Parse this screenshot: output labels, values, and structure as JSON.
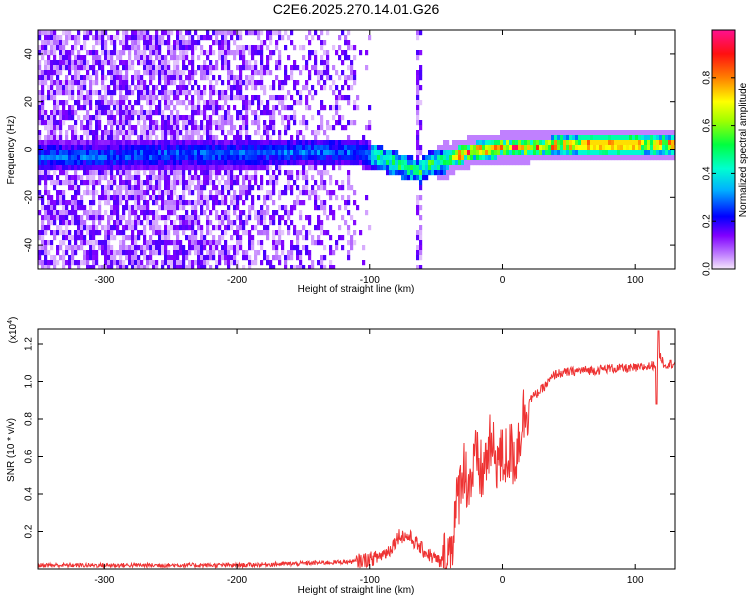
{
  "title": "C2E6.2025.270.14.01.G26",
  "chart_data": [
    {
      "type": "heatmap",
      "xlabel": "Height of straight line (km)",
      "ylabel": "Frequency (Hz)",
      "xlim": [
        -350,
        130
      ],
      "ylim": [
        -50,
        50
      ],
      "xticks": [
        -300,
        -200,
        -100,
        0,
        100
      ],
      "xtick_labels": [
        "-300",
        "-200",
        "-100",
        "0",
        "100"
      ],
      "yticks": [
        -40,
        -20,
        0,
        20,
        40
      ],
      "ytick_labels": [
        "-40",
        "-20",
        "0",
        "20",
        "40"
      ],
      "colorbar": {
        "label": "Normalized spectral amplitude",
        "range": [
          0,
          1
        ],
        "ticks": [
          0.0,
          0.2,
          0.4,
          0.6,
          0.8
        ],
        "tick_labels": [
          "0.0",
          "0.2",
          "0.4",
          "0.6",
          "0.8"
        ],
        "colors": [
          "#f0d8f8",
          "#8000ff",
          "#0000ff",
          "#00d8ff",
          "#00ff40",
          "#ffff00",
          "#ff8000",
          "#ff0000",
          "#ff0080"
        ]
      },
      "center_line": {
        "x": [
          -340,
          -300,
          -250,
          -200,
          -150,
          -110,
          -95,
          -80,
          -70,
          -62,
          -55,
          -45,
          -35,
          -25,
          -15,
          -5,
          0,
          20,
          50,
          80,
          100,
          130
        ],
        "y": [
          -3,
          -3,
          -2,
          -2,
          -1,
          -1,
          -3,
          -6,
          -8,
          -9,
          -6,
          -5,
          -3,
          -1,
          0,
          0,
          1,
          1,
          2,
          2,
          2,
          2
        ]
      }
    },
    {
      "type": "line",
      "xlabel": "Height of straight line (km)",
      "ylabel": "SNR (10 * v/v)",
      "y_multiplier": "(x10",
      "y_multiplier_exp": "4",
      "y_multiplier_close": ")",
      "xlim": [
        -350,
        130
      ],
      "ylim": [
        0,
        1.28
      ],
      "xticks": [
        -300,
        -200,
        -100,
        0,
        100
      ],
      "xtick_labels": [
        "-300",
        "-200",
        "-100",
        "0",
        "100"
      ],
      "yticks": [
        0.2,
        0.4,
        0.6,
        0.8,
        1.0,
        1.2
      ],
      "ytick_labels": [
        "0.2",
        "0.4",
        "0.6",
        "0.8",
        "1.0",
        "1.2"
      ],
      "line_color": "#ee3333",
      "series": [
        {
          "name": "SNR",
          "x": [
            -350,
            -300,
            -250,
            -200,
            -150,
            -110,
            -95,
            -85,
            -78,
            -70,
            -60,
            -50,
            -45,
            -40,
            -35,
            -30,
            -25,
            -20,
            -15,
            -10,
            -5,
            0,
            5,
            10,
            15,
            20,
            25,
            30,
            35,
            40,
            50,
            60,
            70,
            80,
            90,
            100,
            110,
            115,
            118,
            122,
            130
          ],
          "y": [
            0.02,
            0.02,
            0.02,
            0.02,
            0.03,
            0.04,
            0.06,
            0.1,
            0.18,
            0.17,
            0.1,
            0.05,
            0.03,
            0.08,
            0.3,
            0.55,
            0.45,
            0.58,
            0.5,
            0.65,
            0.6,
            0.58,
            0.62,
            0.6,
            0.8,
            0.9,
            0.93,
            0.96,
            1.0,
            1.04,
            1.05,
            1.06,
            1.06,
            1.07,
            1.07,
            1.07,
            1.08,
            1.09,
            1.15,
            1.09,
            1.1
          ]
        }
      ]
    }
  ]
}
